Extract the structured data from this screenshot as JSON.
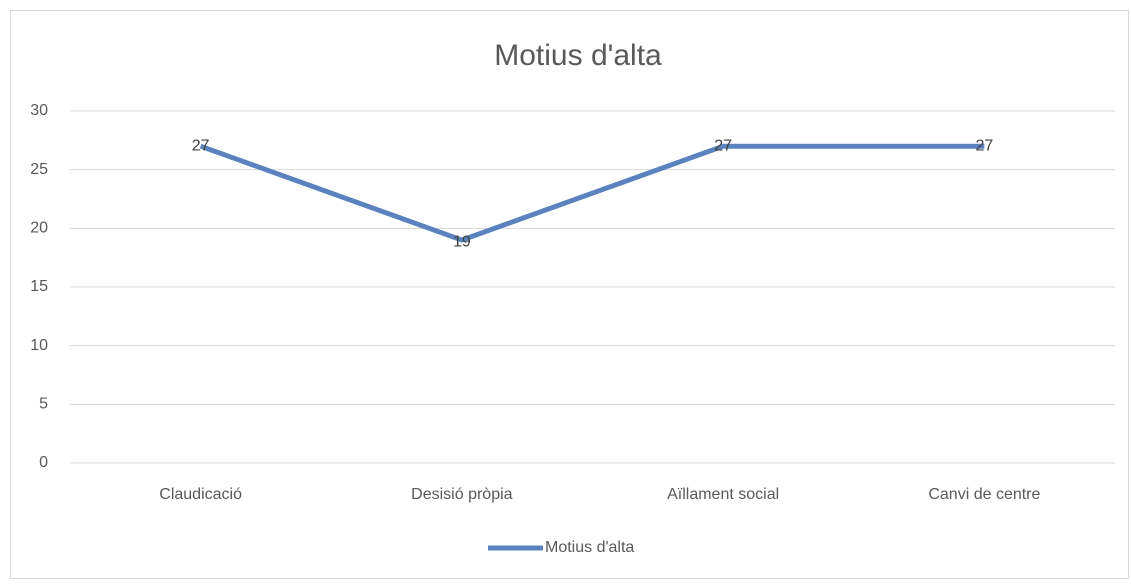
{
  "chart_data": {
    "type": "line",
    "title": "Motius d'alta",
    "categories": [
      "Claudicació",
      "Desisió pròpia",
      "Aïllament social",
      "Canvi de centre"
    ],
    "series": [
      {
        "name": "Motius d'alta",
        "color": "#5a82be",
        "values": [
          27,
          19,
          27,
          27
        ]
      }
    ],
    "ylim": [
      0,
      30
    ],
    "yticks": [
      0,
      5,
      10,
      15,
      20,
      25,
      30
    ],
    "grid": true,
    "legend": "bottom",
    "data_labels": true
  }
}
